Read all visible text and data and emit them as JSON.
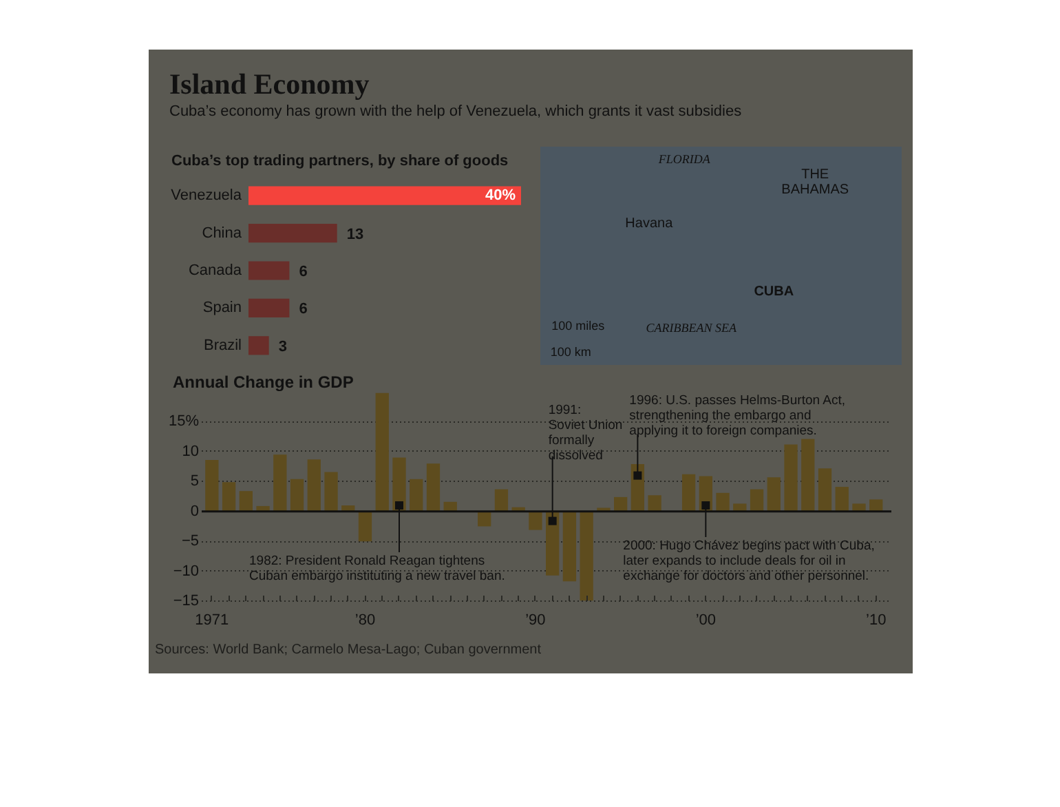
{
  "chart_data": [
    {
      "type": "bar",
      "orientation": "horizontal",
      "title": "Island Economy",
      "subtitle": "Cuba’s economy has grown with the help of Venezuela, which grants it vast subsidies",
      "annotations": [
        "Cuba’s top trading partners, by share of goods"
      ],
      "categories": [
        "Venezuela",
        "China",
        "Canada",
        "Spain",
        "Brazil"
      ],
      "values": [
        40,
        13,
        6,
        6,
        3
      ],
      "value_labels": [
        "40%",
        "13",
        "6",
        "6",
        "3"
      ],
      "colors": [
        "#f4433c",
        "#6a2e2a",
        "#6a2e2a",
        "#6a2e2a",
        "#6a2e2a"
      ],
      "tick_labels": "y"
    },
    {
      "type": "other",
      "annotations": [
        "FLORIDA",
        "THE\nBAHAMAS",
        "Havana",
        "CUBA",
        "CARIBBEAN SEA",
        "100 miles",
        "100 km"
      ]
    },
    {
      "type": "bar",
      "title": "Annual Change in GDP",
      "x": [
        1971,
        1972,
        1973,
        1974,
        1975,
        1976,
        1977,
        1978,
        1979,
        1980,
        1981,
        1982,
        1983,
        1984,
        1985,
        1986,
        1987,
        1988,
        1989,
        1990,
        1991,
        1992,
        1993,
        1994,
        1995,
        1996,
        1997,
        1998,
        1999,
        2000,
        2001,
        2002,
        2003,
        2004,
        2005,
        2006,
        2007,
        2008,
        2009,
        2010
      ],
      "values": [
        8.6,
        4.9,
        3.4,
        0.9,
        9.5,
        5.4,
        8.7,
        6.6,
        1.0,
        -5.0,
        19.8,
        9.0,
        5.4,
        8.0,
        1.6,
        null,
        -2.5,
        3.7,
        0.7,
        -3.1,
        -10.7,
        -11.7,
        -14.9,
        0.6,
        2.4,
        7.9,
        2.7,
        null,
        6.2,
        5.9,
        3.1,
        1.3,
        3.7,
        5.7,
        11.2,
        12.1,
        7.2,
        4.1,
        1.3,
        2.0
      ],
      "color": "#5e4c1e",
      "xlim": [
        1970.4,
        2010.9
      ],
      "ylim": [
        -15,
        20
      ],
      "xticks": [
        1971,
        {
          "value": 1972,
          "label": null
        },
        {
          "value": 1973,
          "label": null
        },
        {
          "value": 1974,
          "label": null
        },
        {
          "value": 1975,
          "label": null
        },
        {
          "value": 1976,
          "label": null
        },
        {
          "value": 1977,
          "label": null
        },
        {
          "value": 1978,
          "label": null
        },
        {
          "value": 1979,
          "label": null
        },
        {
          "value": 1980,
          "label": "’80"
        },
        {
          "value": 1981,
          "label": null
        },
        {
          "value": 1982,
          "label": null
        },
        {
          "value": 1983,
          "label": null
        },
        {
          "value": 1984,
          "label": null
        },
        {
          "value": 1985,
          "label": null
        },
        {
          "value": 1986,
          "label": null
        },
        {
          "value": 1987,
          "label": null
        },
        {
          "value": 1988,
          "label": null
        },
        {
          "value": 1989,
          "label": null
        },
        {
          "value": 1990,
          "label": "’90"
        },
        {
          "value": 1991,
          "label": null
        },
        {
          "value": 1992,
          "label": null
        },
        {
          "value": 1993,
          "label": null
        },
        {
          "value": 1994,
          "label": null
        },
        {
          "value": 1995,
          "label": null
        },
        {
          "value": 1996,
          "label": null
        },
        {
          "value": 1997,
          "label": null
        },
        {
          "value": 1998,
          "label": null
        },
        {
          "value": 1999,
          "label": null
        },
        {
          "value": 2000,
          "label": "’00"
        },
        {
          "value": 2001,
          "label": null
        },
        {
          "value": 2002,
          "label": null
        },
        {
          "value": 2003,
          "label": null
        },
        {
          "value": 2004,
          "label": null
        },
        {
          "value": 2005,
          "label": null
        },
        {
          "value": 2006,
          "label": null
        },
        {
          "value": 2007,
          "label": null
        },
        {
          "value": 2008,
          "label": null
        },
        {
          "value": 2009,
          "label": null
        },
        {
          "value": 2010,
          "label": "’10"
        }
      ],
      "yticks": [
        {
          "value": 15,
          "label": "15%"
        },
        10,
        5,
        0,
        {
          "value": -5,
          "label": "−5"
        },
        {
          "value": -10,
          "label": "−10"
        },
        {
          "value": -15,
          "label": "−15"
        }
      ],
      "grid": "y",
      "ref_lines": [
        {
          "axis": "y",
          "value": 0
        }
      ],
      "annotations": [
        {
          "text": "1982: President Ronald Reagan tightens\nCuban embargo instituting a new travel ban.",
          "x": 1982,
          "y": 1.0
        },
        {
          "text": "1991:\nSoviet Union\nformally\ndissolved",
          "x": 1991,
          "y": -1.6
        },
        {
          "text": "1996: U.S. passes Helms-Burton Act,\nstrengthening the embargo and\napplying it to foreign companies.",
          "x": 1996,
          "y": 6.0
        },
        {
          "text": "2000: Hugo Chávez begins pact with Cuba,\nlater expands to include deals for oil in\nexchange for doctors and other personnel.",
          "x": 2000,
          "y": 1.0
        },
        "Sources: World Bank; Carmelo Mesa-Lago; Cuban government"
      ]
    }
  ]
}
